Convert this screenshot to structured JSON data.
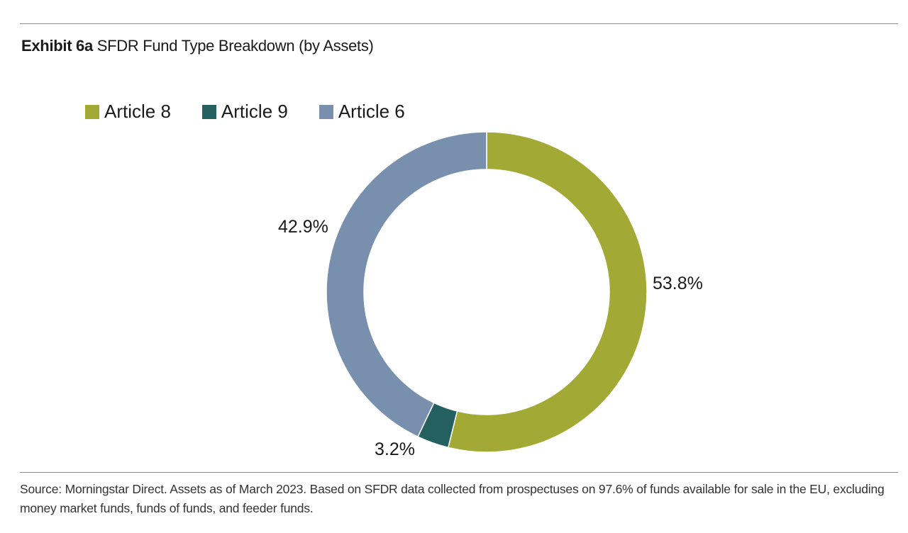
{
  "header": {
    "exhibit_label": "Exhibit 6a",
    "title": "SFDR Fund Type Breakdown (by Assets)"
  },
  "chart_data": {
    "type": "pie",
    "variant": "donut",
    "title": "SFDR Fund Type Breakdown (by Assets)",
    "legend_position": "top-left",
    "categories": [
      "Article 8",
      "Article 9",
      "Article 6"
    ],
    "values": [
      53.8,
      3.2,
      42.9
    ],
    "value_labels": [
      "53.8%",
      "3.2%",
      "42.9%"
    ],
    "colors": [
      "#a2a935",
      "#24605f",
      "#788fad"
    ],
    "start_angle_deg": 0,
    "direction": "clockwise"
  },
  "footer": {
    "source_text": "Source: Morningstar Direct. Assets as of March 2023. Based on SFDR data collected from prospectuses on 97.6% of funds available for sale in the EU, excluding money market funds, funds of funds, and feeder funds."
  }
}
